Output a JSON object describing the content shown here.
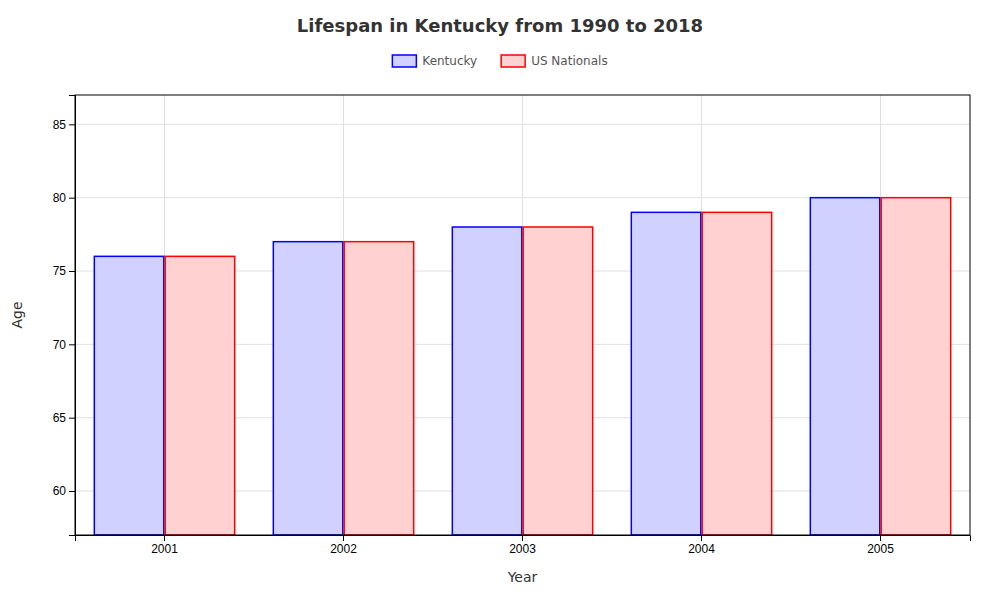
{
  "chart_data": {
    "type": "bar",
    "title": "Lifespan in Kentucky from 1990 to 2018",
    "x_label": "Year",
    "y_label": "Age",
    "categories": [
      "2001",
      "2002",
      "2003",
      "2004",
      "2005"
    ],
    "series": [
      {
        "name": "Kentucky",
        "color": "#0000ff",
        "values": [
          76,
          77,
          78,
          79,
          80
        ]
      },
      {
        "name": "US Nationals",
        "color": "#ff0000",
        "values": [
          76,
          77,
          78,
          79,
          80
        ]
      }
    ],
    "ylim": [
      57,
      87
    ],
    "yticks": [
      60,
      65,
      70,
      75,
      80,
      85
    ],
    "grid": true,
    "legend": "top"
  }
}
